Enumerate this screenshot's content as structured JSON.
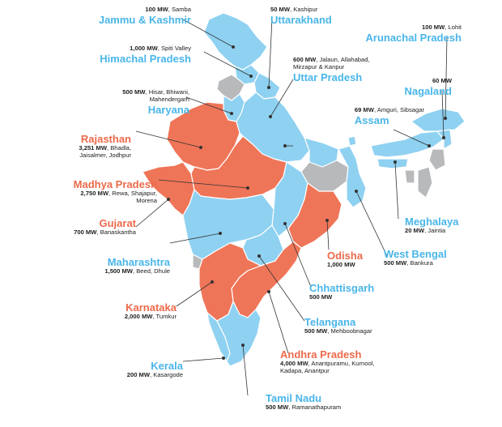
{
  "colors": {
    "target_set": "#ef7558",
    "target_set_label": "#ec6a4b",
    "other_state": "#8fd1f1",
    "other_state_label": "#49b6e8",
    "no_target": "#b7b9bb"
  },
  "labels": {
    "jammu_kashmir": {
      "name": "Jammu & Kashmir",
      "mw": "100 MW",
      "places": "Samba",
      "group": "blue"
    },
    "himachal_pradesh": {
      "name": "Himachal Pradesh",
      "mw": "1,000 MW",
      "places": "Spiti Valley",
      "group": "blue"
    },
    "haryana": {
      "name": "Haryana",
      "mw": "500 MW",
      "places": "Hisar, Bhiwani, Mahendergarh",
      "line1": "Hisar, Bhiwani,",
      "line2": "Mahendergarh",
      "group": "blue"
    },
    "rajasthan": {
      "name": "Rajasthan",
      "mw": "3,251 MW",
      "places": "Bhadla, Jaisalmer, Jodhpur",
      "line1": "Bhadla,",
      "line2": "Jaisalmer, Jodhpur",
      "group": "orange"
    },
    "madhya_pradesh": {
      "name": "Madhya Pradesh",
      "mw": "2,750 MW",
      "places": "Rewa, Shajapur, Morena",
      "line1": "Rewa, Shajapur,",
      "line2": "Morena",
      "group": "orange"
    },
    "gujarat": {
      "name": "Gujarat",
      "mw": "700 MW",
      "places": "Banaskantha",
      "group": "orange"
    },
    "maharashtra": {
      "name": "Maharashtra",
      "mw": "1,500 MW",
      "places": "Beed, Dhule",
      "group": "blue"
    },
    "karnataka": {
      "name": "Karnataka",
      "mw": "2,000 MW",
      "places": "Tumkur",
      "group": "orange"
    },
    "kerala": {
      "name": "Kerala",
      "mw": "200 MW",
      "places": "Kasargode",
      "group": "blue"
    },
    "tamil_nadu": {
      "name": "Tamil Nadu",
      "mw": "500 MW",
      "places": "Ramanathapuram",
      "group": "blue"
    },
    "andhra_pradesh": {
      "name": "Andhra Pradesh",
      "mw": "4,000 MW",
      "places": "Anantpuramu, Kurnool, Kadapa, Anantpur",
      "line1": "Anantpuramu, Kurnool,",
      "line2": "Kadapa, Anantpur",
      "group": "orange"
    },
    "telangana": {
      "name": "Telangana",
      "mw": "500 MW",
      "places": "Mehboobnagar",
      "group": "blue"
    },
    "chhattisgarh": {
      "name": "Chhattisgarh",
      "mw": "500 MW",
      "places": "",
      "group": "blue"
    },
    "odisha": {
      "name": "Odisha",
      "mw": "1,000 MW",
      "places": "",
      "group": "orange"
    },
    "west_bengal": {
      "name": "West Bengal",
      "mw": "500 MW",
      "places": "Bankura",
      "group": "blue"
    },
    "meghalaya": {
      "name": "Meghalaya",
      "mw": "20 MW",
      "places": "Jaintia",
      "group": "blue"
    },
    "assam": {
      "name": "Assam",
      "mw": "69 MW",
      "places": "Amguri, Sibsagar",
      "group": "blue"
    },
    "nagaland": {
      "name": "Nagaland",
      "mw": "60 MW",
      "places": "",
      "group": "blue"
    },
    "arunachal_pradesh": {
      "name": "Arunachal Pradesh",
      "mw": "100 MW",
      "places": "Lohit",
      "group": "blue"
    },
    "uttar_pradesh": {
      "name": "Uttar Pradesh",
      "mw": "600 MW",
      "places": "Jalaun, Allahabad, Mirzapur & Kanpur",
      "line1": "Jalaun, Allahabad,",
      "line2": "Mirzapur & Kanpur",
      "group": "blue"
    },
    "uttarakhand": {
      "name": "Uttarakhand",
      "mw": "50 MW",
      "places": "Kashipur",
      "group": "blue"
    }
  }
}
